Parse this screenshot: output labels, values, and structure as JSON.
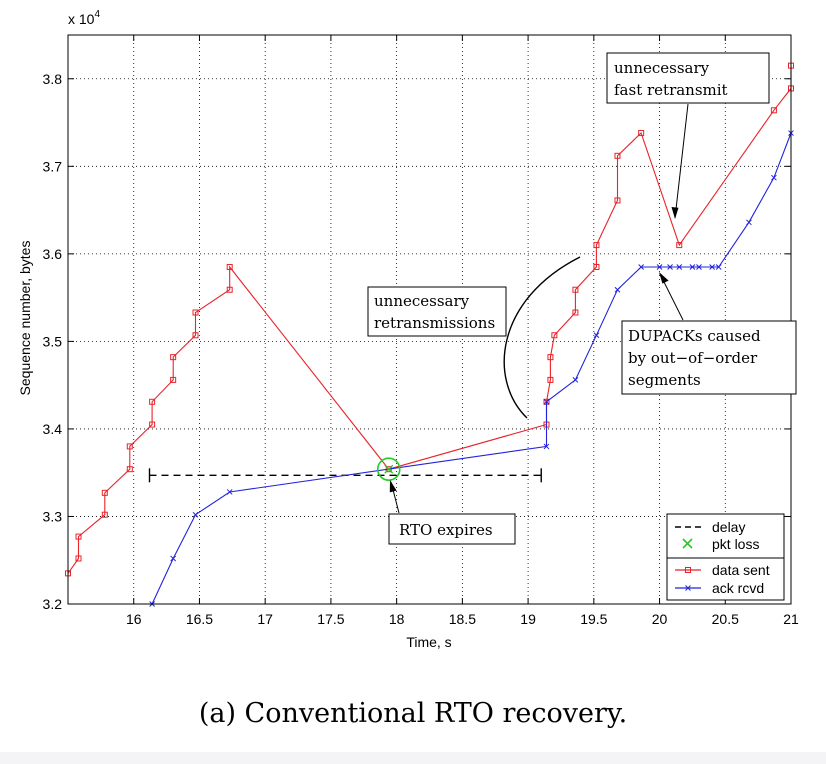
{
  "chart_data": {
    "type": "line",
    "caption": "(a) Conventional RTO recovery.",
    "xlabel": "Time, s",
    "ylabel": "Sequence number, bytes",
    "y_multiplier": "x 10",
    "y_multiplier_exp": "4",
    "xlim": [
      15.5,
      21.0
    ],
    "ylim": [
      3.2,
      3.85
    ],
    "xticks": [
      16,
      16.5,
      17,
      17.5,
      18,
      18.5,
      19,
      19.5,
      20,
      20.5,
      21
    ],
    "xtick_labels": [
      "16",
      "16.5",
      "17",
      "17.5",
      "18",
      "18.5",
      "19",
      "19.5",
      "20",
      "20.5",
      "21"
    ],
    "yticks": [
      3.2,
      3.3,
      3.4,
      3.5,
      3.6,
      3.7,
      3.8
    ],
    "ytick_labels": [
      "3.2",
      "3.3",
      "3.4",
      "3.5",
      "3.6",
      "3.7",
      "3.8"
    ],
    "grid": true,
    "series": [
      {
        "name": "data sent",
        "color": "#e8232a",
        "marker": "square",
        "x": [
          15.5,
          15.58,
          15.58,
          15.78,
          15.78,
          15.97,
          15.97,
          16.14,
          16.14,
          16.3,
          16.3,
          16.47,
          16.47,
          16.73,
          16.73,
          17.94,
          19.14,
          19.14,
          19.17,
          19.17,
          19.2,
          19.36,
          19.36,
          19.52,
          19.52,
          19.68,
          19.68,
          19.86,
          20.15,
          20.87,
          21.0,
          21.0
        ],
        "y": [
          3.235,
          3.252,
          3.277,
          3.302,
          3.327,
          3.354,
          3.38,
          3.405,
          3.431,
          3.456,
          3.482,
          3.507,
          3.533,
          3.559,
          3.585,
          3.354,
          3.405,
          3.431,
          3.456,
          3.482,
          3.507,
          3.533,
          3.559,
          3.585,
          3.61,
          3.661,
          3.712,
          3.738,
          3.61,
          3.764,
          3.789,
          3.815
        ]
      },
      {
        "name": "ack rcvd",
        "color": "#2323dd",
        "marker": "x",
        "x": [
          16.14,
          16.3,
          16.47,
          16.73,
          19.14,
          19.14,
          19.36,
          19.52,
          19.68,
          19.86,
          20.0,
          20.08,
          20.15,
          20.25,
          20.3,
          20.4,
          20.45,
          20.68,
          20.87,
          21.0
        ],
        "y": [
          3.2,
          3.252,
          3.302,
          3.328,
          3.38,
          3.431,
          3.456,
          3.507,
          3.559,
          3.585,
          3.585,
          3.585,
          3.585,
          3.585,
          3.585,
          3.585,
          3.585,
          3.636,
          3.687,
          3.738
        ]
      }
    ],
    "delay_interval": {
      "label": "delay",
      "x_start": 16.12,
      "x_end": 19.1,
      "y": 3.347,
      "style": "dashed",
      "color": "#000000"
    },
    "pkt_loss": {
      "label": "pkt loss",
      "x": 17.94,
      "y": 3.354,
      "color": "#22cc22"
    },
    "legend": {
      "location": "bottom-right",
      "entries": [
        "delay",
        "pkt loss",
        "data sent",
        "ack rcvd"
      ]
    },
    "annotations": [
      {
        "id": "fast",
        "lines": [
          "unnecessary",
          "fast retransmit"
        ],
        "points_to": [
          20.15,
          3.61
        ]
      },
      {
        "id": "retrans",
        "lines": [
          "unnecessary",
          "retransmissions"
        ]
      },
      {
        "id": "dupacks",
        "lines": [
          "DUPACKs caused",
          "by out−of−order",
          "segments"
        ],
        "points_to": [
          20.07,
          3.585
        ]
      },
      {
        "id": "rto",
        "lines": [
          "RTO expires"
        ],
        "points_to": [
          17.94,
          3.354
        ]
      }
    ]
  }
}
